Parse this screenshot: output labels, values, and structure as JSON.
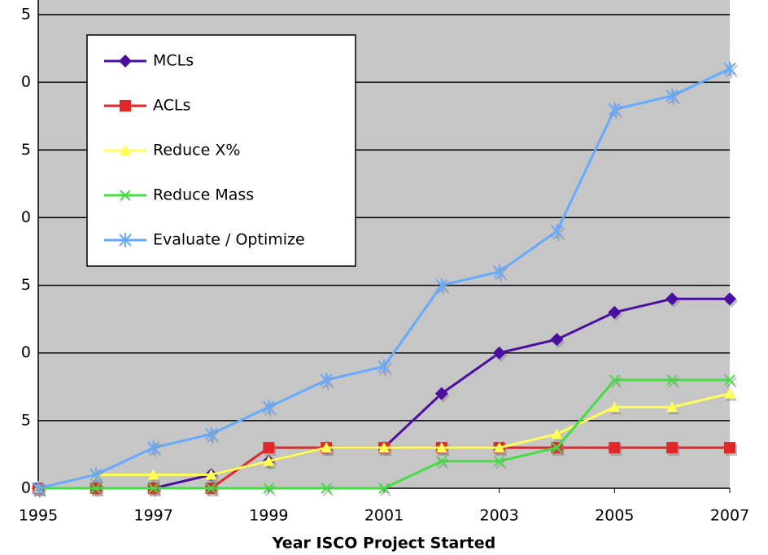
{
  "chart_data": {
    "type": "line",
    "x_label": "Year ISCO Project Started",
    "x": [
      1995,
      1996,
      1997,
      1998,
      1999,
      2000,
      2001,
      2002,
      2003,
      2004,
      2005,
      2006,
      2007
    ],
    "xlim": [
      1995,
      2007
    ],
    "xticks": [
      1995,
      1997,
      1999,
      2001,
      2003,
      2005,
      2007
    ],
    "ylim": [
      0,
      35
    ],
    "yticks": [
      0,
      5,
      {
        "value": 10,
        "label": "0"
      },
      {
        "value": 15,
        "label": "5"
      },
      {
        "value": 20,
        "label": "0"
      },
      {
        "value": 25,
        "label": "5"
      },
      {
        "value": 30,
        "label": "0"
      },
      {
        "value": 35,
        "label": "5"
      }
    ],
    "grid": true,
    "legend": "upper left",
    "series": [
      {
        "name": "MCLs",
        "color": "#4a0fa0",
        "marker": "diamond",
        "values": [
          0,
          0,
          0,
          1,
          2,
          3,
          3,
          7,
          10,
          11,
          13,
          14,
          14
        ]
      },
      {
        "name": "ACLs",
        "color": "#e02828",
        "marker": "square",
        "values": [
          0,
          0,
          0,
          0,
          3,
          3,
          3,
          3,
          3,
          3,
          3,
          3,
          3
        ]
      },
      {
        "name": "Reduce X%",
        "color": "#ffff55",
        "marker": "triangle",
        "values": [
          0,
          1,
          1,
          1,
          2,
          3,
          3,
          3,
          3,
          4,
          6,
          6,
          7
        ]
      },
      {
        "name": "Reduce Mass",
        "color": "#44dd44",
        "marker": "cross",
        "values": [
          0,
          0,
          0,
          0,
          0,
          0,
          0,
          2,
          2,
          3,
          8,
          8,
          8
        ]
      },
      {
        "name": "Evaluate / Optimize",
        "color": "#66aaff",
        "marker": "star",
        "values": [
          0,
          1,
          3,
          4,
          6,
          8,
          9,
          15,
          16,
          19,
          28,
          29,
          31
        ]
      }
    ]
  }
}
